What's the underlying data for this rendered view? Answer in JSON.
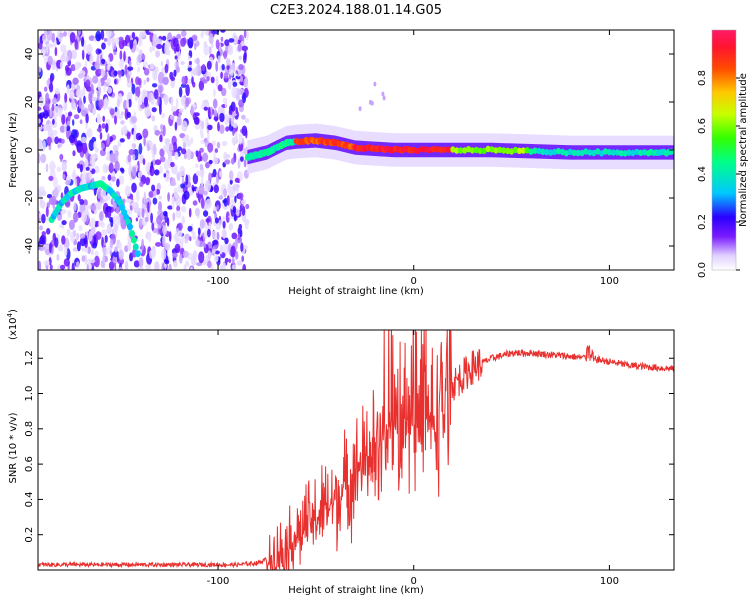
{
  "title": "C2E3.2024.188.01.14.G05",
  "colors": {
    "snr_line": "#e8312f",
    "axis": "#000000"
  },
  "chart_data": [
    {
      "type": "heatmap",
      "xlabel": "Height of straight line (km)",
      "ylabel": "Frequency (Hz)",
      "xlim": [
        -192,
        133
      ],
      "ylim": [
        -50,
        50
      ],
      "xticks": [
        -100,
        0,
        100
      ],
      "yticks": [
        -40,
        -20,
        0,
        20,
        40
      ],
      "colorbar": {
        "label": "Normalized spectral amplitude",
        "range": [
          0,
          1
        ],
        "ticks": [
          "0.0",
          "0.2",
          "0.4",
          "0.6",
          "0.8"
        ]
      },
      "ridge": {
        "description_points": [
          [
            -185,
            -29
          ],
          [
            -180,
            -22
          ],
          [
            -175,
            -18
          ],
          [
            -170,
            -16
          ],
          [
            -165,
            -15
          ],
          [
            -160,
            -14
          ],
          [
            -155,
            -17
          ],
          [
            -150,
            -22
          ],
          [
            -145,
            -32
          ],
          [
            -140,
            -46
          ]
        ],
        "main": [
          [
            -85,
            -3
          ],
          [
            -80,
            -2
          ],
          [
            -75,
            -1
          ],
          [
            -70,
            1
          ],
          [
            -65,
            3
          ],
          [
            -60,
            3.5
          ],
          [
            -50,
            4
          ],
          [
            -40,
            3
          ],
          [
            -30,
            1
          ],
          [
            -20,
            0.5
          ],
          [
            -10,
            0
          ],
          [
            0,
            0
          ],
          [
            20,
            0
          ],
          [
            40,
            0
          ],
          [
            60,
            -0.5
          ],
          [
            80,
            -1
          ],
          [
            100,
            -1
          ],
          [
            120,
            -1
          ],
          [
            133,
            -1
          ]
        ]
      }
    },
    {
      "type": "line",
      "xlabel": "Height of straight line (km)",
      "ylabel": "SNR (10 * v/v)",
      "multiplier": "(x10",
      "multiplier_exp": "4",
      "xlim": [
        -192,
        133
      ],
      "ylim": [
        0,
        1.36
      ],
      "xticks": [
        -100,
        0,
        100
      ],
      "yticks": [
        0.2,
        0.4,
        0.6,
        0.8,
        1.0,
        1.2
      ],
      "envelope": [
        [
          -192,
          0.03
        ],
        [
          -90,
          0.03
        ],
        [
          -80,
          0.04
        ],
        [
          -70,
          0.08
        ],
        [
          -60,
          0.2
        ],
        [
          -50,
          0.3
        ],
        [
          -40,
          0.4
        ],
        [
          -30,
          0.55
        ],
        [
          -20,
          0.7
        ],
        [
          -10,
          0.8
        ],
        [
          0,
          0.82
        ],
        [
          10,
          0.85
        ],
        [
          20,
          1.05
        ],
        [
          30,
          1.15
        ],
        [
          40,
          1.2
        ],
        [
          50,
          1.23
        ],
        [
          60,
          1.23
        ],
        [
          70,
          1.22
        ],
        [
          80,
          1.21
        ],
        [
          90,
          1.2
        ],
        [
          100,
          1.18
        ],
        [
          110,
          1.16
        ],
        [
          120,
          1.15
        ],
        [
          133,
          1.14
        ]
      ]
    }
  ]
}
